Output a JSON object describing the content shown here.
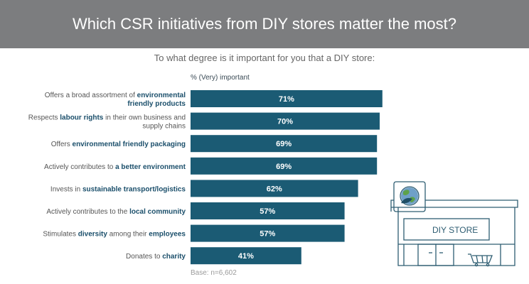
{
  "header": {
    "title": "Which CSR initiatives from DIY stores matter the most?",
    "subtitle": "To what degree is it important for you that a DIY store:"
  },
  "column_header": "% (Very) important",
  "base_note": "Base: n=6,602",
  "store_sign": "DIY STORE",
  "colors": {
    "bar": "#1b5b74",
    "highlight": "#1b4f6b",
    "banner": "#7c7d7f",
    "label": "#555555"
  },
  "chart_data": {
    "type": "bar",
    "orientation": "horizontal",
    "title": "Which CSR initiatives from DIY stores matter the most?",
    "subtitle": "To what degree is it important for you that a DIY store:",
    "value_header": "% (Very) important",
    "unit": "%",
    "xlim": [
      0,
      100
    ],
    "categories": [
      "Offers a broad assortment of environmental friendly products",
      "Respects labour rights in their own business and supply chains",
      "Offers environmental friendly packaging",
      "Actively contributes to a better environment",
      "Invests in sustainable transport/logistics",
      "Actively contributes to the local community",
      "Stimulates diversity among their employees",
      "Donates to charity"
    ],
    "category_lines": [
      [
        [
          {
            "t": "Offers a broad assortment of ",
            "b": false
          },
          {
            "t": "environmental",
            "b": true
          }
        ],
        [
          {
            "t": "friendly products",
            "b": true
          }
        ]
      ],
      [
        [
          {
            "t": "Respects ",
            "b": false
          },
          {
            "t": "labour rights",
            "b": true
          },
          {
            "t": " in their own business and",
            "b": false
          }
        ],
        [
          {
            "t": "supply chains",
            "b": false
          }
        ]
      ],
      [
        [
          {
            "t": "Offers ",
            "b": false
          },
          {
            "t": "environmental friendly packaging",
            "b": true
          }
        ]
      ],
      [
        [
          {
            "t": "Actively contributes to ",
            "b": false
          },
          {
            "t": "a better environment",
            "b": true
          }
        ]
      ],
      [
        [
          {
            "t": "Invests in ",
            "b": false
          },
          {
            "t": "sustainable transport/logistics",
            "b": true
          }
        ]
      ],
      [
        [
          {
            "t": "Actively contributes to the ",
            "b": false
          },
          {
            "t": "local community",
            "b": true
          }
        ]
      ],
      [
        [
          {
            "t": "Stimulates ",
            "b": false
          },
          {
            "t": "diversity",
            "b": true
          },
          {
            "t": " among their ",
            "b": false
          },
          {
            "t": "employees",
            "b": true
          }
        ]
      ],
      [
        [
          {
            "t": "Donates to ",
            "b": false
          },
          {
            "t": "charity",
            "b": true
          }
        ]
      ]
    ],
    "values": [
      71,
      70,
      69,
      69,
      62,
      57,
      57,
      41
    ],
    "value_labels": [
      "71%",
      "70%",
      "69%",
      "69%",
      "62%",
      "57%",
      "57%",
      "41%"
    ],
    "source": "Base: n=6,602"
  }
}
